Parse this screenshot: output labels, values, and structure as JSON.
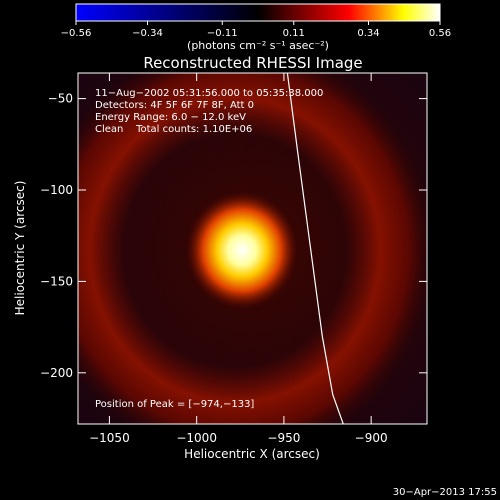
{
  "chart_data": {
    "type": "heatmap",
    "title": "Reconstructed RHESSI Image",
    "xlabel": "Heliocentric X (arcsec)",
    "ylabel": "Heliocentric Y (arcsec)",
    "xlim": [
      -1068,
      -868
    ],
    "ylim": [
      -228,
      -36
    ],
    "x_ticks": [
      -1050,
      -1000,
      -950,
      -900
    ],
    "y_ticks": [
      -50,
      -100,
      -150,
      -200
    ],
    "x_tick_labels": [
      "−1050",
      "−1000",
      "−950",
      "−900"
    ],
    "y_tick_labels": [
      "−50",
      "−100",
      "−150",
      "−200"
    ],
    "colorbar": {
      "min": -0.56,
      "max": 0.56,
      "ticks": [
        -0.56,
        -0.34,
        -0.11,
        0.11,
        0.34,
        0.56
      ],
      "tick_labels": [
        "−0.56",
        "−0.34",
        "−0.11",
        "0.11",
        "0.34",
        "0.56"
      ],
      "unit_label": "(photons cm⁻² s⁻¹ asec⁻²)",
      "colors": [
        "#0000ff",
        "#000000",
        "#ff0000",
        "#ffff00",
        "#ffffff"
      ]
    },
    "annotations": [
      "11−Aug−2002 05:31:56.000 to 05:35:38.000",
      "Detectors: 4F 5F 6F 7F 8F, Att 0",
      "Energy Range: 6.0 − 12.0 keV",
      "Clean    Total counts: 1.10E+06"
    ],
    "peak_label": "Position of Peak = [−974,−133]",
    "peak": {
      "x": -974,
      "y": -133,
      "value": 0.56
    },
    "ring": {
      "center_x": -978,
      "center_y": -133,
      "radius_arcsec": 55,
      "value": 0.2
    },
    "limb_curve": {
      "x": [
        -948,
        -942,
        -935,
        -928,
        -922,
        -916
      ],
      "y": [
        -36,
        -80,
        -130,
        -180,
        -212,
        -228
      ]
    },
    "footer_timestamp": "30−Apr−2013 17:55"
  }
}
